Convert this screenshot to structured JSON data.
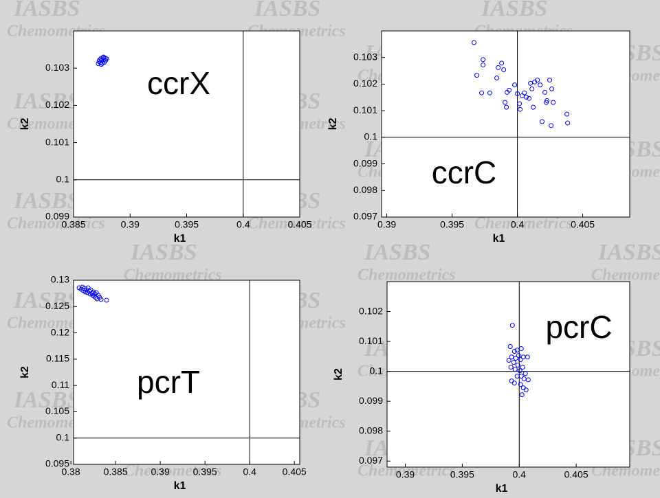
{
  "watermark": {
    "title": "IASBS",
    "subtitle": "Chemometrics"
  },
  "chart_data": [
    {
      "type": "scatter",
      "annotation": "ccrX",
      "xlabel": "k1",
      "ylabel": "k2",
      "color": "#0000ff",
      "xlim": [
        0.385,
        0.405
      ],
      "xticks": [
        0.385,
        0.39,
        0.395,
        0.4,
        0.405
      ],
      "ylim": [
        0.099,
        0.104
      ],
      "yticks": [
        0.099,
        0.1,
        0.101,
        0.102,
        0.103
      ],
      "vlines": [
        0.4
      ],
      "hlines": [
        0.1
      ],
      "x": [
        0.38719,
        0.38725,
        0.38731,
        0.38737,
        0.38743,
        0.38749,
        0.38755,
        0.38761,
        0.38767,
        0.38773,
        0.38779,
        0.38785,
        0.38792,
        0.38745,
        0.38765
      ],
      "values": [
        0.10312,
        0.10318,
        0.10322,
        0.10315,
        0.10326,
        0.1032,
        0.10313,
        0.10328,
        0.10322,
        0.10316,
        0.10327,
        0.10321,
        0.10325,
        0.1031,
        0.1033
      ]
    },
    {
      "type": "scatter",
      "annotation": "ccrC",
      "xlabel": "k1",
      "ylabel": "k2",
      "color": "#0000ff",
      "xlim": [
        0.3896,
        0.4086
      ],
      "xticks": [
        0.39,
        0.395,
        0.4,
        0.405
      ],
      "ylim": [
        0.097,
        0.104
      ],
      "yticks": [
        0.097,
        0.098,
        0.099,
        0.1,
        0.101,
        0.102,
        0.103
      ],
      "vlines": [
        0.4
      ],
      "hlines": [
        0.1
      ],
      "x": [
        0.39668,
        0.39689,
        0.39737,
        0.39737,
        0.39726,
        0.39789,
        0.39842,
        0.39853,
        0.39879,
        0.39895,
        0.39905,
        0.39921,
        0.39916,
        0.39937,
        0.39979,
        0.4,
        0.40021,
        0.40016,
        0.40037,
        0.40053,
        0.40068,
        0.40089,
        0.401,
        0.40111,
        0.40121,
        0.40132,
        0.40153,
        0.40174,
        0.40189,
        0.4021,
        0.40221,
        0.40226,
        0.40247,
        0.40263,
        0.40274,
        0.40258,
        0.40379,
        0.40384
      ],
      "values": [
        0.10356,
        0.10233,
        0.10292,
        0.10272,
        0.10167,
        0.10167,
        0.10223,
        0.10262,
        0.10279,
        0.10254,
        0.10131,
        0.10169,
        0.10113,
        0.10177,
        0.10197,
        0.10164,
        0.10105,
        0.10126,
        0.10156,
        0.10167,
        0.10151,
        0.10146,
        0.10203,
        0.10182,
        0.10113,
        0.10208,
        0.10215,
        0.10197,
        0.10059,
        0.10169,
        0.10131,
        0.10138,
        0.10215,
        0.10182,
        0.10131,
        0.10044,
        0.10087,
        0.10054
      ]
    },
    {
      "type": "scatter",
      "annotation": "pcrT",
      "xlabel": "k1",
      "ylabel": "k2",
      "color": "#0000ff",
      "xlim": [
        0.3803,
        0.4056
      ],
      "xticks": [
        0.38,
        0.385,
        0.39,
        0.395,
        0.4,
        0.405
      ],
      "ylim": [
        0.095,
        0.13
      ],
      "yticks": [
        0.095,
        0.1,
        0.105,
        0.11,
        0.115,
        0.12,
        0.125,
        0.13
      ],
      "vlines": [
        0.4
      ],
      "hlines": [
        0.1
      ],
      "x": [
        0.38092,
        0.38115,
        0.3813,
        0.38138,
        0.38153,
        0.38161,
        0.38176,
        0.38184,
        0.38192,
        0.38207,
        0.38215,
        0.38222,
        0.38238,
        0.38245,
        0.38253,
        0.38261,
        0.38268,
        0.38276,
        0.38284,
        0.38292,
        0.38307,
        0.38322,
        0.38338,
        0.38399
      ],
      "values": [
        0.12856,
        0.1283,
        0.12869,
        0.12804,
        0.12843,
        0.12778,
        0.12817,
        0.12765,
        0.12856,
        0.12791,
        0.12739,
        0.12817,
        0.12752,
        0.12713,
        0.12778,
        0.127,
        0.12739,
        0.12674,
        0.12765,
        0.12647,
        0.12713,
        0.12674,
        0.12634,
        0.12621
      ]
    },
    {
      "type": "scatter",
      "annotation": "pcrC",
      "xlabel": "k1",
      "ylabel": "k2",
      "color": "#0000ff",
      "xlim": [
        0.3884,
        0.4097
      ],
      "xticks": [
        0.39,
        0.395,
        0.4,
        0.405
      ],
      "ylim": [
        0.0968,
        0.103
      ],
      "yticks": [
        0.097,
        0.098,
        0.099,
        0.1,
        0.101,
        0.102
      ],
      "vlines": [
        0.4
      ],
      "hlines": [
        0.1
      ],
      "x": [
        0.3994,
        0.39921,
        0.39958,
        0.39933,
        0.39982,
        0.40018,
        0.39909,
        0.39952,
        0.3997,
        0.39994,
        0.40012,
        0.40036,
        0.40073,
        0.39927,
        0.39964,
        0.39988,
        0.40006,
        0.4003,
        0.40054,
        0.39933,
        0.39958,
        0.39982,
        0.40018,
        0.40042,
        0.40079,
        0.40012,
        0.40036,
        0.4006,
        0.40024
      ],
      "values": [
        0.10154,
        0.10083,
        0.10067,
        0.10048,
        0.10071,
        0.10076,
        0.10037,
        0.1003,
        0.10044,
        0.10053,
        0.10039,
        0.10048,
        0.10048,
        0.10014,
        0.10007,
        0.10021,
        0.10002,
        0.10014,
        0.09993,
        0.09968,
        0.09961,
        0.09984,
        0.09984,
        0.09975,
        0.09972,
        0.09956,
        0.09945,
        0.09938,
        0.09922
      ]
    }
  ]
}
